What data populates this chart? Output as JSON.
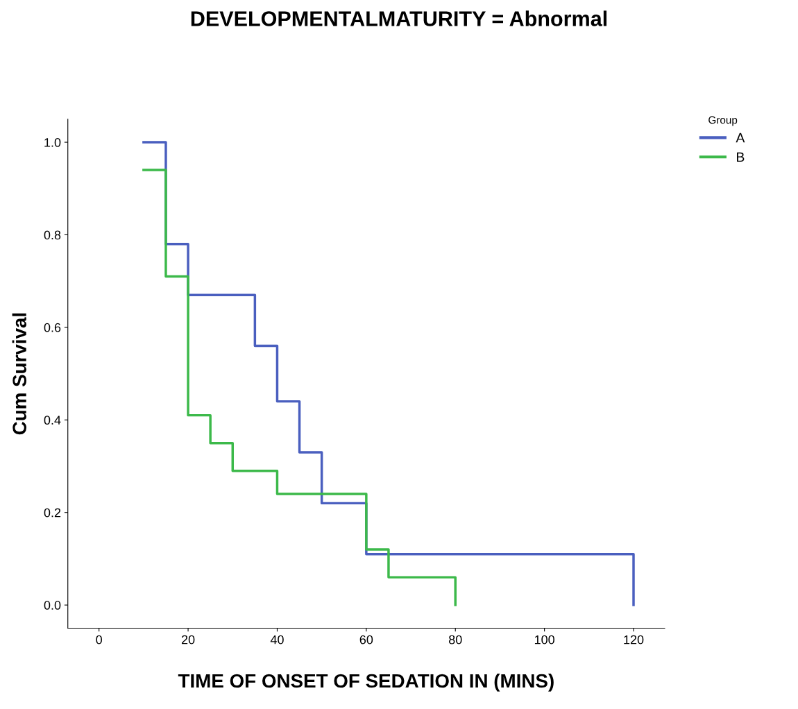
{
  "chart_data": {
    "type": "step",
    "title": "DEVELOPMENTALMATURITY = Abnormal",
    "xlabel": "TIME OF ONSET OF SEDATION IN (MINS)",
    "ylabel": "Cum Survival",
    "legend_title": "Group",
    "series": [
      {
        "name": "A",
        "color": "#4a5fbf",
        "x": [
          10,
          15,
          20,
          35,
          40,
          45,
          50,
          60,
          120
        ],
        "values": [
          1.0,
          0.78,
          0.67,
          0.56,
          0.44,
          0.33,
          0.22,
          0.11,
          0.0
        ]
      },
      {
        "name": "B",
        "color": "#3cb94a",
        "x": [
          10,
          15,
          20,
          25,
          30,
          40,
          60,
          65,
          80
        ],
        "values": [
          0.94,
          0.71,
          0.41,
          0.35,
          0.29,
          0.24,
          0.12,
          0.06,
          0.0
        ]
      }
    ],
    "xlim": [
      -7,
      127
    ],
    "xticks": [
      0,
      20,
      40,
      60,
      80,
      100,
      120
    ],
    "ylim": [
      -0.05,
      1.05
    ],
    "yticks": [
      {
        "value": 0,
        "label": "0.0"
      },
      {
        "value": 0.2,
        "label": "0.2"
      },
      {
        "value": 0.4,
        "label": "0.4"
      },
      {
        "value": 0.6,
        "label": "0.6"
      },
      {
        "value": 0.8,
        "label": "0.8"
      },
      {
        "value": 1.0,
        "label": "1.0"
      }
    ],
    "grid": false,
    "legend": "top right"
  }
}
